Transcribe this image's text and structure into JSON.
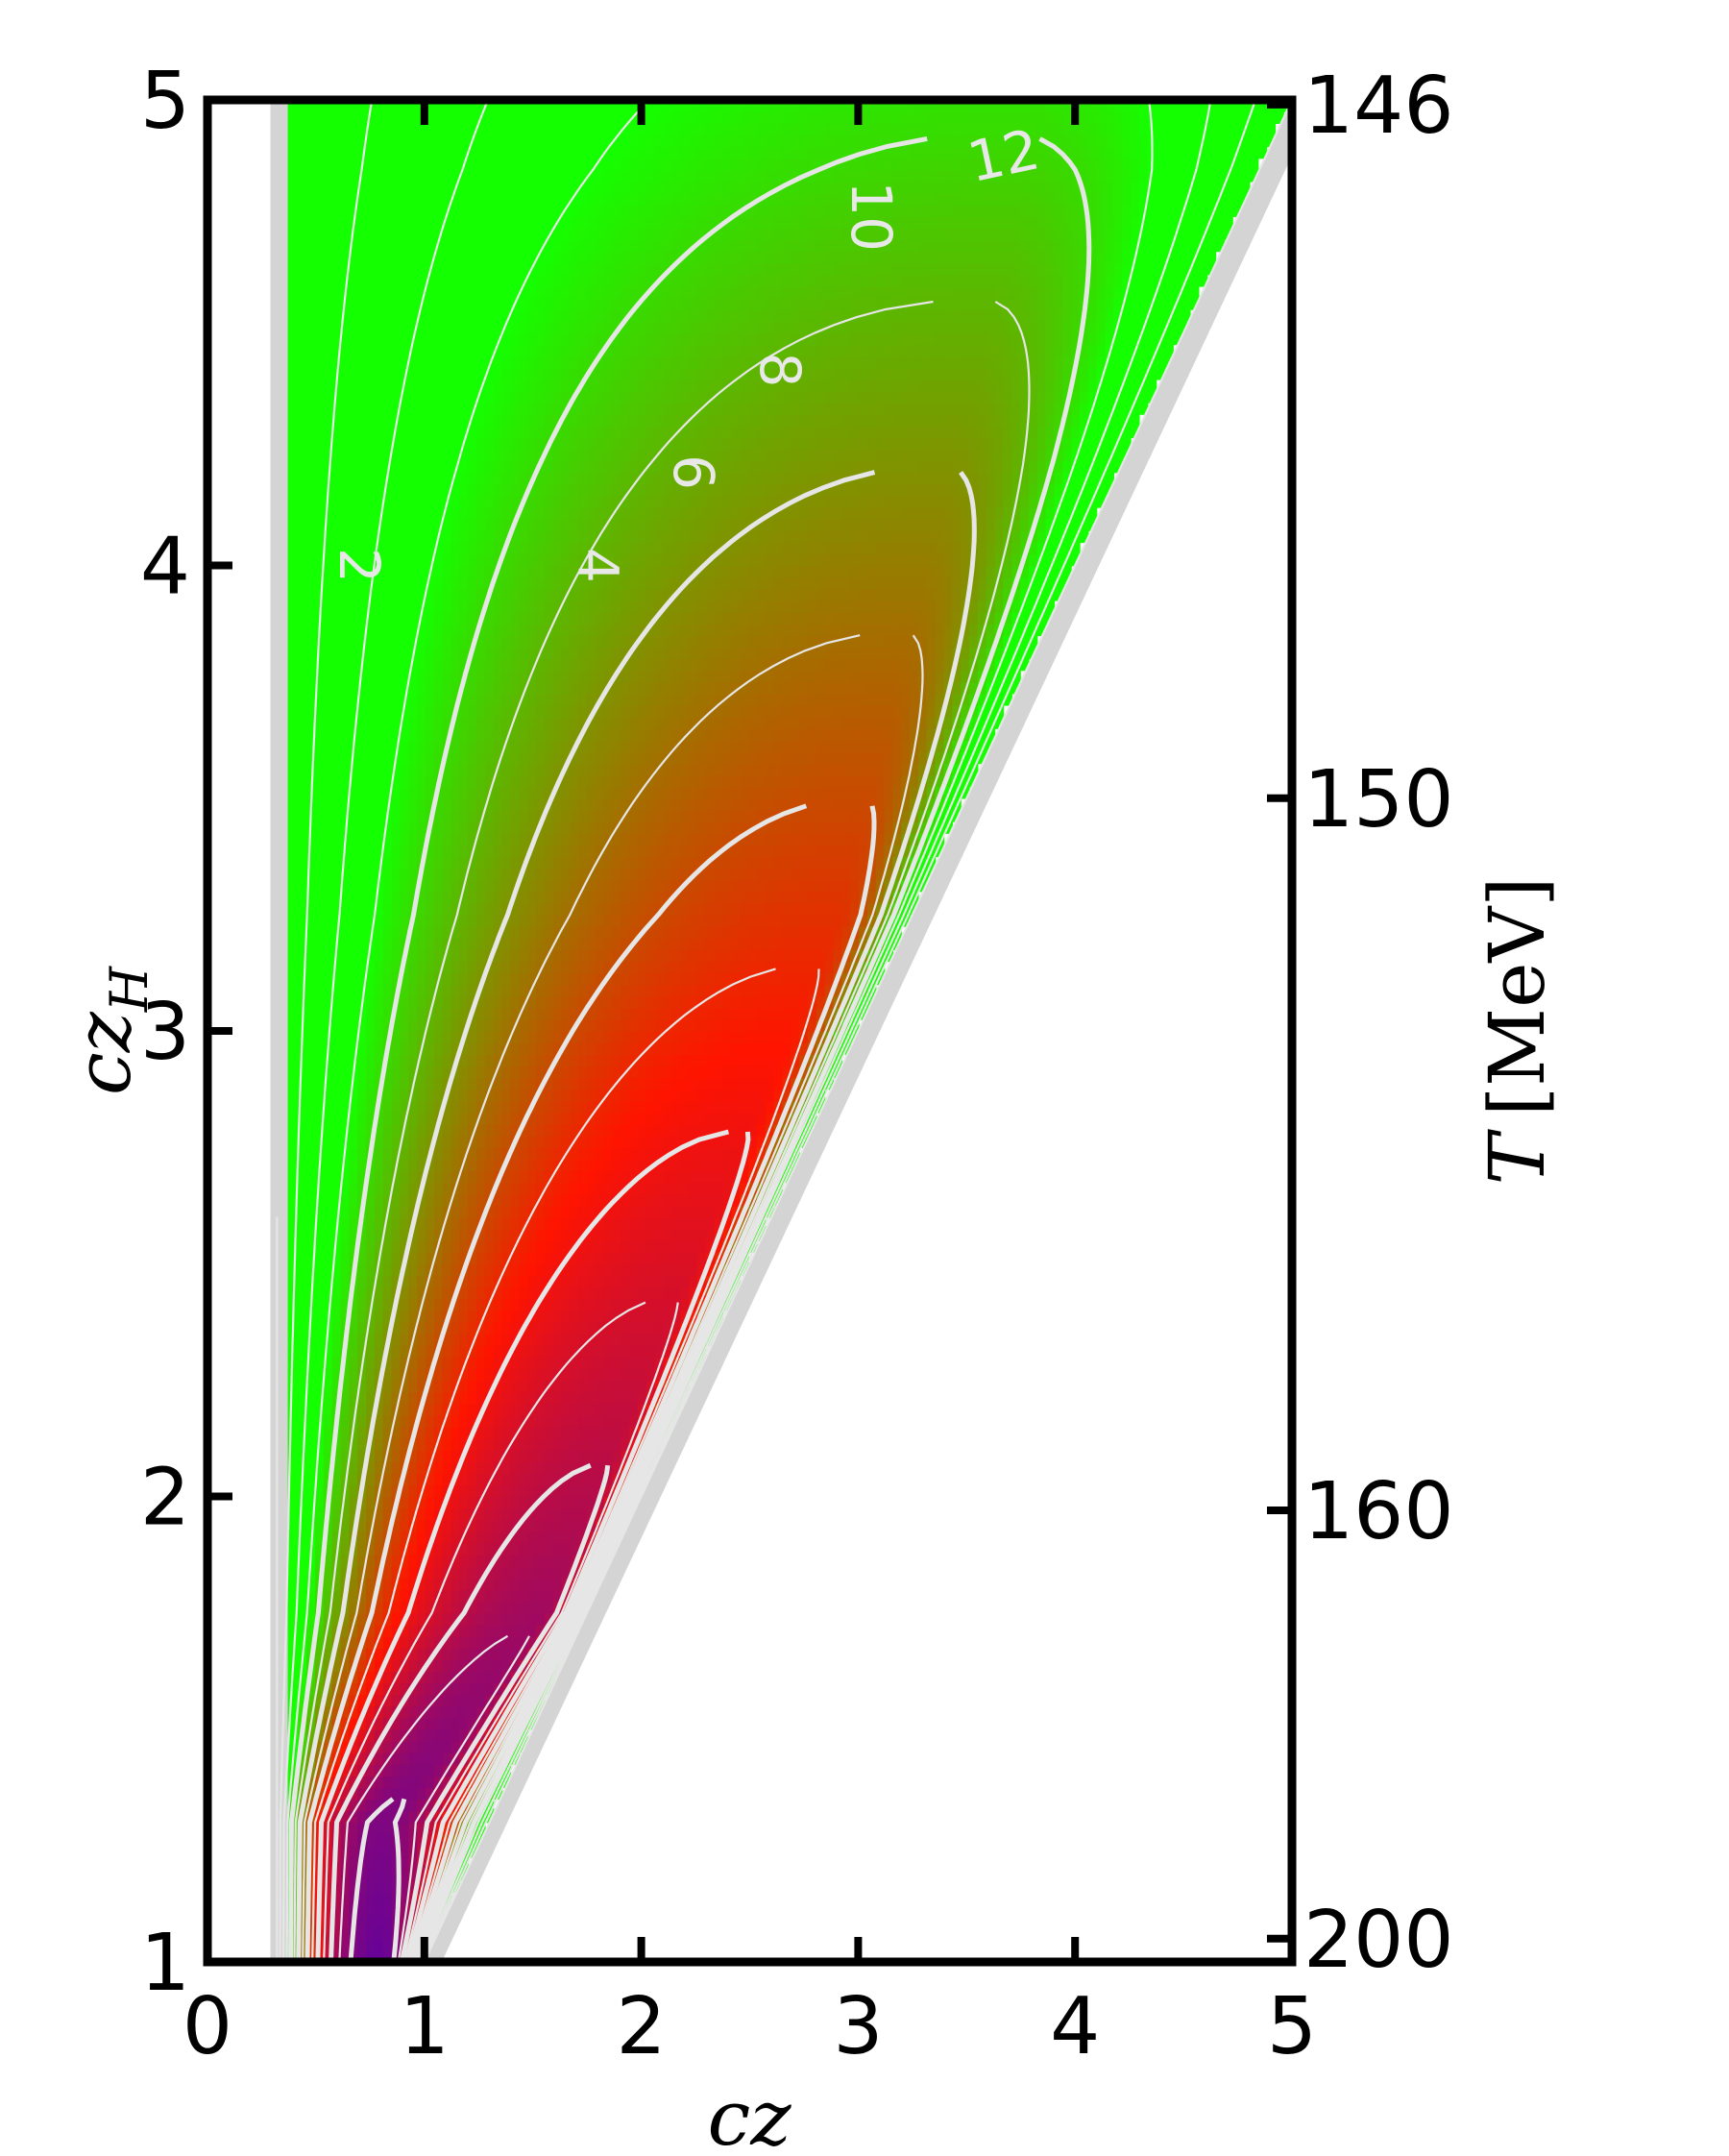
{
  "chart_data": {
    "type": "heatmap",
    "subtype": "filled contour plot with contour lines",
    "title": "",
    "xlabel": "cz",
    "ylabel": "cz_H",
    "ylabel_main": "cz",
    "ylabel_sub": "H",
    "y2label": "T [MeV]",
    "y2label_var": "T",
    "y2label_unit": "[MeV]",
    "xlim": [
      0,
      5
    ],
    "ylim": [
      1,
      5
    ],
    "x_ticks": [
      0,
      1,
      2,
      3,
      4,
      5
    ],
    "x_tick_labels": [
      "0",
      "1",
      "2",
      "3",
      "4",
      "5"
    ],
    "y_ticks": [
      1,
      2,
      3,
      4,
      5
    ],
    "y_tick_labels": [
      "1",
      "2",
      "3",
      "4",
      "5"
    ],
    "y2_ticks": [
      {
        "cz_H": 4.99,
        "label": "146"
      },
      {
        "cz_H": 3.5,
        "label": "150"
      },
      {
        "cz_H": 1.97,
        "label": "160"
      },
      {
        "cz_H": 1.05,
        "label": "200"
      }
    ],
    "valid_region": "0.3 < cz < cz_H",
    "colormap": [
      "#4b00b4",
      "#ff1400",
      "#14ff00"
    ],
    "contour_lines": {
      "major": [
        2,
        4,
        6,
        8,
        10,
        12
      ],
      "minor_step": 1,
      "color": "#e6e6e6"
    },
    "contour_labels": [
      {
        "text": "2",
        "x": 0.7,
        "y": 4.0
      },
      {
        "text": "4",
        "x": 1.8,
        "y": 4.0
      },
      {
        "text": "6",
        "x": 2.24,
        "y": 4.2
      },
      {
        "text": "8",
        "x": 2.64,
        "y": 4.42
      },
      {
        "text": "10",
        "x": 3.06,
        "y": 4.75
      },
      {
        "text": "12",
        "x": 3.67,
        "y": 4.88
      }
    ],
    "minimum_curve": {
      "x": [
        0.8,
        1.55,
        2.9,
        3.4,
        3.7
      ],
      "y": [
        1.3,
        1.75,
        3.25,
        4.22,
        4.85
      ]
    },
    "grid": false
  }
}
